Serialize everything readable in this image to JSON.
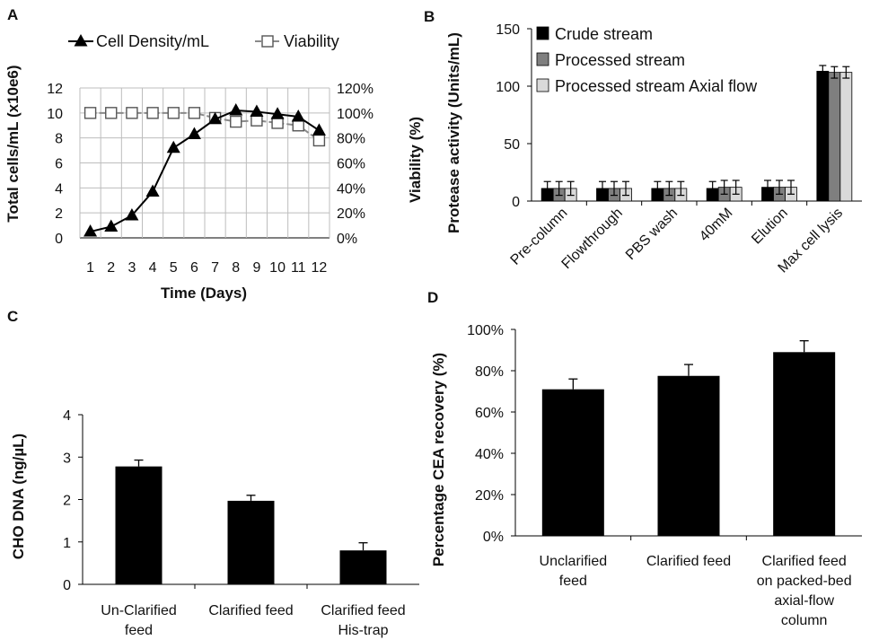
{
  "panels": {
    "A": "A",
    "B": "B",
    "C": "C",
    "D": "D"
  },
  "chart_data": [
    {
      "panel": "A",
      "type": "line",
      "xlabel": "Time (Days)",
      "ylabel": "Total cells/mL (x10e6)",
      "y2label": "Viability (%)",
      "x": [
        1,
        2,
        3,
        4,
        5,
        6,
        7,
        8,
        9,
        10,
        11,
        12
      ],
      "xticks": [
        "1",
        "2",
        "3",
        "4",
        "5",
        "6",
        "7",
        "8",
        "9",
        "10",
        "11",
        "12"
      ],
      "ylim": [
        0,
        12
      ],
      "yticks": [
        "0",
        "2",
        "4",
        "6",
        "8",
        "10",
        "12"
      ],
      "y2lim": [
        0,
        120
      ],
      "y2ticks": [
        "0%",
        "20%",
        "40%",
        "60%",
        "80%",
        "100%",
        "120%"
      ],
      "grid": true,
      "legend_position": "top",
      "series": [
        {
          "name": "Cell Density/mL",
          "axis": "left",
          "marker": "filled-triangle",
          "values": [
            0.5,
            0.9,
            1.8,
            3.7,
            7.2,
            8.3,
            9.5,
            10.2,
            10.1,
            9.9,
            9.7,
            8.6
          ]
        },
        {
          "name": "Viability",
          "axis": "right",
          "marker": "open-square",
          "values": [
            100,
            100,
            100,
            100,
            100,
            100,
            96,
            93,
            94,
            92,
            90,
            78
          ]
        }
      ]
    },
    {
      "panel": "B",
      "type": "bar",
      "ylabel": "Protease activity (Units/mL)",
      "ylim": [
        0,
        150
      ],
      "yticks": [
        "0",
        "50",
        "100",
        "150"
      ],
      "legend_position": "top-left",
      "categories": [
        "Pre-column",
        "Flowthrough",
        "PBS wash",
        "40mM",
        "Elution",
        "Max cell lysis"
      ],
      "series": [
        {
          "name": "Crude stream",
          "color": "#000000",
          "values": [
            11,
            11,
            11,
            11,
            12,
            113
          ],
          "errors": [
            6,
            6,
            6,
            6,
            6,
            5
          ]
        },
        {
          "name": "Processed stream",
          "color": "#7f7f7f",
          "values": [
            11,
            11,
            11,
            12,
            12,
            112
          ],
          "errors": [
            6,
            6,
            6,
            6,
            6,
            5
          ]
        },
        {
          "name": "Processed stream Axial flow",
          "color": "#d9d9d9",
          "values": [
            11,
            11,
            11,
            12,
            12,
            112
          ],
          "errors": [
            6,
            6,
            6,
            6,
            6,
            5
          ]
        }
      ]
    },
    {
      "panel": "C",
      "type": "bar",
      "ylabel": "CHO DNA (ng/µL)",
      "ylim": [
        0,
        4
      ],
      "yticks": [
        "0",
        "1",
        "2",
        "3",
        "4"
      ],
      "categories": [
        [
          "Un-Clarified",
          "feed"
        ],
        [
          "Clarified feed"
        ],
        [
          "Clarified feed",
          "His-trap"
        ]
      ],
      "values": [
        2.78,
        1.97,
        0.8
      ],
      "errors": [
        0.15,
        0.13,
        0.18
      ]
    },
    {
      "panel": "D",
      "type": "bar",
      "ylabel": "Percentage CEA recovery (%)",
      "ylim": [
        0,
        100
      ],
      "yticks": [
        "0%",
        "20%",
        "40%",
        "60%",
        "80%",
        "100%"
      ],
      "categories": [
        [
          "Unclarified",
          "feed"
        ],
        [
          "Clarified feed"
        ],
        [
          "Clarified feed",
          "on packed-bed",
          "axial-flow",
          "column"
        ]
      ],
      "values": [
        71,
        77.5,
        89
      ],
      "errors": [
        5,
        5.5,
        5.5
      ]
    }
  ]
}
